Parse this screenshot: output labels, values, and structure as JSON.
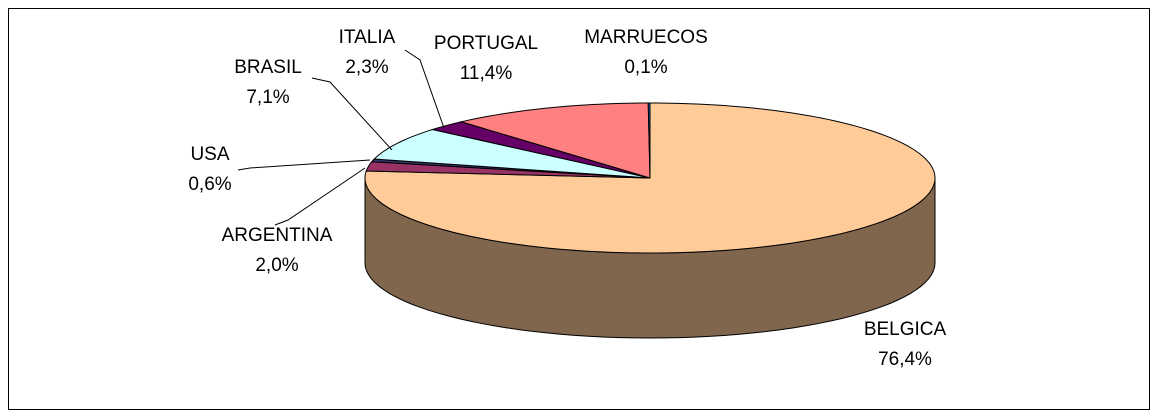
{
  "chart_data": {
    "type": "pie",
    "categories": [
      "BELGICA",
      "ARGENTINA",
      "USA",
      "BRASIL",
      "ITALIA",
      "PORTUGAL",
      "MARRUECOS"
    ],
    "values": [
      76.4,
      2.0,
      0.6,
      7.1,
      2.3,
      11.4,
      0.1
    ],
    "value_labels": [
      "76,4%",
      "2,0%",
      "0,6%",
      "7,1%",
      "2,3%",
      "11,4%",
      "0,1%"
    ],
    "colors": [
      "#ffcc99",
      "#993366",
      "#333366",
      "#ccffff",
      "#660066",
      "#ff8080",
      "#0066cc"
    ]
  }
}
